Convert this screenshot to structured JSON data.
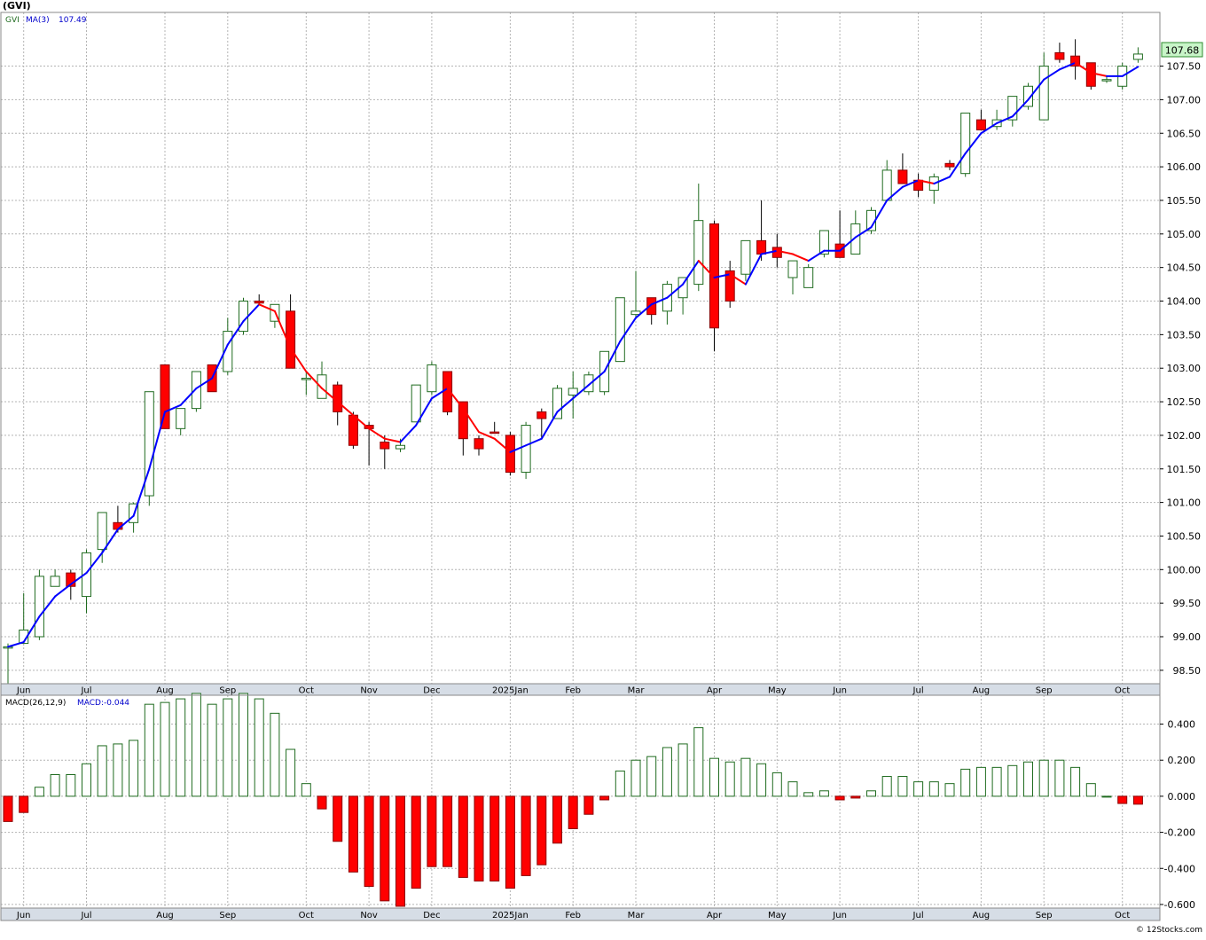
{
  "symbol_label": "(GVI)",
  "credit": "© 12Stocks.com",
  "colors": {
    "up_candle_stroke": "#1f6b1f",
    "down_candle_fill": "#ff0000",
    "ma_up": "#0000ff",
    "ma_down": "#ff0000",
    "grid": "#b4b4b4",
    "axis_band": "#d6dde6",
    "last_price_box": "#c8f5c8"
  },
  "chart_data": [
    {
      "type": "candlestick",
      "panel": "price",
      "legend": {
        "symbol": "GVI",
        "ma_label": "MA(3)",
        "ma_value": "107.49"
      },
      "last_price": "107.68",
      "x_ticks": [
        "Jun",
        "Jul",
        "Aug",
        "Sep",
        "Oct",
        "Nov",
        "Dec",
        "2025Jan",
        "Feb",
        "Mar",
        "Apr",
        "May",
        "Jun",
        "Jul",
        "Aug",
        "Sep",
        "Oct"
      ],
      "x_tick_index": [
        1,
        5,
        10,
        14,
        19,
        23,
        27,
        32,
        36,
        40,
        45,
        49,
        53,
        58,
        62,
        66,
        71
      ],
      "y_ticks": [
        "98.50",
        "99.00",
        "99.50",
        "100.00",
        "100.50",
        "101.00",
        "101.50",
        "102.00",
        "102.50",
        "103.00",
        "103.50",
        "104.00",
        "104.50",
        "105.00",
        "105.50",
        "106.00",
        "106.50",
        "107.00",
        "107.50"
      ],
      "ylim": [
        98.3,
        108.3
      ],
      "candles": [
        [
          98.85,
          98.9,
          98.25,
          98.85
        ],
        [
          98.9,
          99.65,
          98.9,
          99.1
        ],
        [
          99.0,
          100.0,
          98.95,
          99.9
        ],
        [
          99.75,
          100.0,
          99.75,
          99.9
        ],
        [
          99.95,
          100.0,
          99.55,
          99.75
        ],
        [
          99.6,
          100.3,
          99.35,
          100.25
        ],
        [
          100.3,
          100.85,
          100.1,
          100.85
        ],
        [
          100.7,
          100.95,
          100.55,
          100.6
        ],
        [
          100.7,
          101.0,
          100.55,
          100.98
        ],
        [
          101.1,
          102.65,
          100.95,
          102.65
        ],
        [
          103.05,
          103.05,
          102.1,
          102.1
        ],
        [
          102.1,
          102.4,
          102.0,
          102.4
        ],
        [
          102.4,
          102.95,
          102.35,
          102.95
        ],
        [
          103.05,
          103.05,
          102.65,
          102.65
        ],
        [
          102.95,
          103.75,
          102.9,
          103.55
        ],
        [
          103.55,
          104.05,
          103.5,
          104.0
        ],
        [
          104.0,
          104.1,
          103.95,
          103.97
        ],
        [
          103.7,
          103.95,
          103.6,
          103.95
        ],
        [
          103.85,
          104.1,
          103.0,
          103.0
        ],
        [
          102.85,
          102.95,
          102.6,
          102.85
        ],
        [
          102.55,
          103.1,
          102.55,
          102.9
        ],
        [
          102.75,
          102.8,
          102.15,
          102.35
        ],
        [
          102.3,
          102.35,
          101.8,
          101.85
        ],
        [
          102.15,
          102.2,
          101.55,
          102.1
        ],
        [
          101.9,
          102.0,
          101.5,
          101.8
        ],
        [
          101.8,
          101.95,
          101.75,
          101.85
        ],
        [
          102.2,
          102.75,
          102.2,
          102.75
        ],
        [
          102.65,
          103.1,
          102.6,
          103.05
        ],
        [
          102.95,
          102.95,
          102.3,
          102.35
        ],
        [
          102.5,
          102.5,
          101.7,
          101.95
        ],
        [
          101.95,
          102.0,
          101.7,
          101.8
        ],
        [
          102.05,
          102.2,
          102.05,
          102.03
        ],
        [
          102.0,
          102.05,
          101.4,
          101.45
        ],
        [
          101.45,
          102.2,
          101.35,
          102.15
        ],
        [
          102.35,
          102.4,
          101.95,
          102.25
        ],
        [
          102.25,
          102.75,
          102.25,
          102.7
        ],
        [
          102.6,
          102.95,
          102.25,
          102.7
        ],
        [
          102.65,
          102.95,
          102.6,
          102.9
        ],
        [
          102.65,
          103.2,
          102.6,
          103.25
        ],
        [
          103.1,
          104.05,
          103.1,
          104.05
        ],
        [
          103.8,
          104.45,
          103.75,
          103.85
        ],
        [
          104.05,
          104.05,
          103.65,
          103.8
        ],
        [
          103.85,
          104.3,
          103.65,
          104.25
        ],
        [
          104.05,
          104.35,
          103.8,
          104.35
        ],
        [
          104.25,
          105.75,
          104.15,
          105.2
        ],
        [
          105.15,
          105.2,
          103.25,
          103.6
        ],
        [
          104.45,
          104.6,
          103.9,
          104.0
        ],
        [
          104.4,
          104.9,
          104.3,
          104.9
        ],
        [
          104.9,
          105.5,
          104.6,
          104.7
        ],
        [
          104.8,
          105.0,
          104.5,
          104.65
        ],
        [
          104.35,
          104.6,
          104.1,
          104.6
        ],
        [
          104.2,
          104.55,
          104.2,
          104.5
        ],
        [
          104.7,
          105.05,
          104.65,
          105.05
        ],
        [
          104.85,
          105.35,
          104.65,
          104.65
        ],
        [
          104.7,
          105.35,
          104.7,
          105.15
        ],
        [
          105.05,
          105.4,
          105.0,
          105.35
        ],
        [
          105.5,
          106.1,
          105.5,
          105.95
        ],
        [
          105.95,
          106.2,
          105.75,
          105.75
        ],
        [
          105.8,
          105.9,
          105.55,
          105.65
        ],
        [
          105.65,
          105.9,
          105.45,
          105.85
        ],
        [
          106.05,
          106.1,
          105.95,
          106.0
        ],
        [
          105.9,
          106.8,
          105.85,
          106.8
        ],
        [
          106.7,
          106.85,
          106.55,
          106.55
        ],
        [
          106.6,
          106.85,
          106.55,
          106.7
        ],
        [
          106.7,
          107.05,
          106.6,
          107.05
        ],
        [
          106.9,
          107.25,
          106.85,
          107.2
        ],
        [
          106.7,
          107.7,
          106.7,
          107.5
        ],
        [
          107.7,
          107.85,
          107.55,
          107.6
        ],
        [
          107.65,
          107.9,
          107.3,
          107.5
        ],
        [
          107.55,
          107.55,
          107.15,
          107.2
        ],
        [
          107.3,
          107.35,
          107.25,
          107.3
        ],
        [
          107.2,
          107.55,
          107.15,
          107.5
        ],
        [
          107.6,
          107.78,
          107.55,
          107.68
        ]
      ],
      "ma3": [
        98.85,
        98.92,
        99.3,
        99.6,
        99.78,
        99.95,
        100.25,
        100.6,
        100.8,
        101.5,
        102.35,
        102.45,
        102.7,
        102.85,
        103.35,
        103.7,
        103.95,
        103.85,
        103.3,
        102.95,
        102.7,
        102.5,
        102.3,
        102.1,
        101.95,
        101.9,
        102.15,
        102.55,
        102.7,
        102.4,
        102.05,
        101.95,
        101.75,
        101.85,
        101.95,
        102.35,
        102.55,
        102.75,
        102.95,
        103.4,
        103.75,
        103.95,
        104.05,
        104.25,
        104.6,
        104.35,
        104.4,
        104.25,
        104.7,
        104.75,
        104.7,
        104.6,
        104.75,
        104.75,
        104.95,
        105.1,
        105.5,
        105.7,
        105.8,
        105.75,
        105.85,
        106.2,
        106.5,
        106.65,
        106.75,
        107.0,
        107.3,
        107.45,
        107.55,
        107.4,
        107.35,
        107.35,
        107.49
      ]
    },
    {
      "type": "bar",
      "panel": "macd",
      "legend": {
        "label": "MACD(26,12,9)",
        "value_label": "MACD:-0.044"
      },
      "y_ticks": [
        "-0.600",
        "-0.400",
        "-0.200",
        "0.000",
        "0.200",
        "0.400"
      ],
      "ylim": [
        -0.62,
        0.56
      ],
      "values": [
        -0.14,
        -0.09,
        0.05,
        0.12,
        0.12,
        0.18,
        0.28,
        0.29,
        0.31,
        0.51,
        0.52,
        0.54,
        0.57,
        0.51,
        0.54,
        0.57,
        0.54,
        0.46,
        0.26,
        0.07,
        -0.07,
        -0.25,
        -0.42,
        -0.5,
        -0.58,
        -0.61,
        -0.51,
        -0.39,
        -0.39,
        -0.45,
        -0.47,
        -0.47,
        -0.51,
        -0.44,
        -0.38,
        -0.26,
        -0.18,
        -0.1,
        -0.02,
        0.14,
        0.2,
        0.22,
        0.27,
        0.29,
        0.38,
        0.21,
        0.19,
        0.21,
        0.18,
        0.13,
        0.08,
        0.02,
        0.03,
        -0.02,
        -0.01,
        0.03,
        0.11,
        0.11,
        0.08,
        0.08,
        0.07,
        0.15,
        0.16,
        0.16,
        0.17,
        0.19,
        0.2,
        0.2,
        0.16,
        0.07,
        0.0,
        -0.04,
        -0.044
      ]
    }
  ]
}
